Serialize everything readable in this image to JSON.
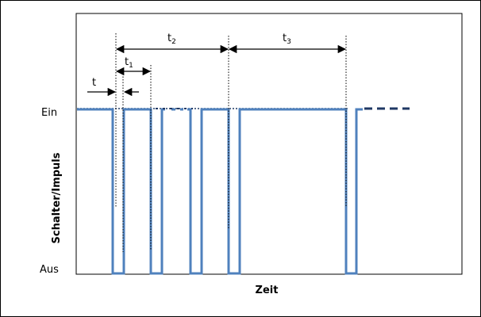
{
  "diagram": {
    "y_label": "Schalter/Impuls",
    "x_label": "Zeit",
    "level_high": "Ein",
    "level_low": "Aus",
    "intervals": [
      {
        "base": "t",
        "sub": ""
      },
      {
        "base": "t",
        "sub": "1"
      },
      {
        "base": "t",
        "sub": "2"
      },
      {
        "base": "t",
        "sub": "3"
      }
    ],
    "signal_color": "#4F81BD",
    "dash_color": "#1F3864"
  }
}
